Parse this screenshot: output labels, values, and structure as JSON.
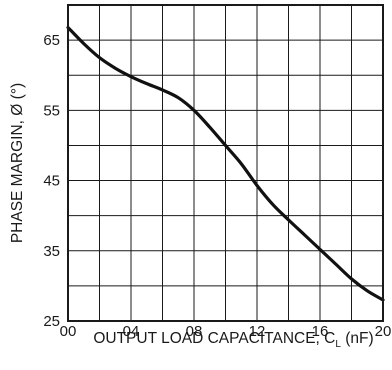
{
  "chart_data": {
    "type": "line",
    "title": "",
    "xlabel": "OUTPUT LOAD CAPACITANCE, C",
    "xlabel_subscript": "L",
    "xlabel_unit": " (nF)",
    "ylabel": "PHASE MARGIN, Ø (°)",
    "xlim": [
      0,
      20
    ],
    "ylim": [
      25,
      70
    ],
    "grid": true,
    "x_ticks": [
      {
        "value": 0,
        "label": "00"
      },
      {
        "value": 4,
        "label": "04"
      },
      {
        "value": 8,
        "label": "08"
      },
      {
        "value": 12,
        "label": "12"
      },
      {
        "value": 16,
        "label": "16"
      },
      {
        "value": 20,
        "label": "20"
      }
    ],
    "y_ticks": [
      {
        "value": 25,
        "label": "25"
      },
      {
        "value": 35,
        "label": "35"
      },
      {
        "value": 45,
        "label": "45"
      },
      {
        "value": 55,
        "label": "55"
      },
      {
        "value": 65,
        "label": "65"
      }
    ],
    "series": [
      {
        "x": [
          0,
          1,
          2,
          3,
          4,
          5,
          6,
          7,
          8,
          9,
          10,
          11,
          12,
          13,
          14,
          15,
          16,
          17,
          18,
          19,
          20
        ],
        "y": [
          66.8,
          64.5,
          62.5,
          61,
          59.8,
          58.8,
          57.9,
          56.8,
          55,
          52.6,
          50,
          47.4,
          44.3,
          41.6,
          39.4,
          37.3,
          35.2,
          33.1,
          31,
          29.3,
          28
        ]
      }
    ]
  }
}
